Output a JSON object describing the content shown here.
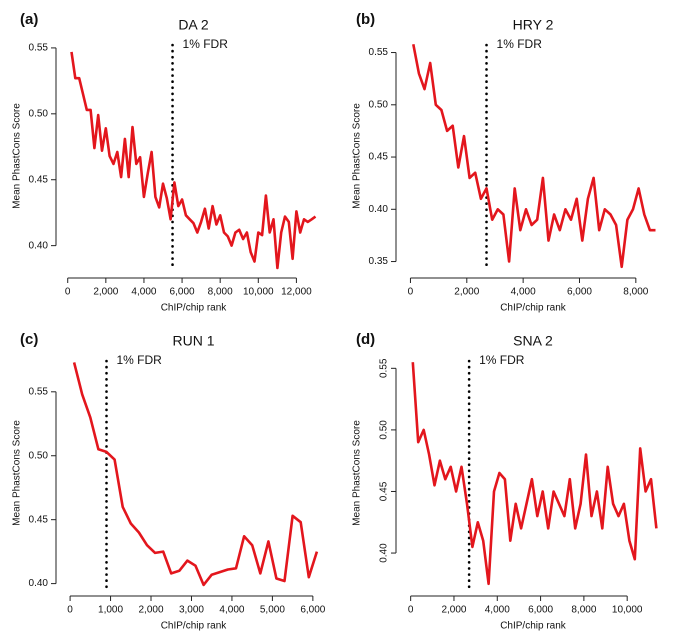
{
  "chart_data": [
    {
      "type": "line",
      "panel_label": "(a)",
      "title": "DA 2",
      "x_label": "ChIP/chip rank",
      "y_label": "Mean PhastCons Score",
      "annotation": "1% FDR",
      "fdr_x": 5500,
      "x": [
        200,
        400,
        600,
        800,
        1000,
        1200,
        1400,
        1600,
        1800,
        2000,
        2200,
        2400,
        2600,
        2800,
        3000,
        3200,
        3400,
        3600,
        3800,
        4000,
        4200,
        4400,
        4600,
        4800,
        5000,
        5200,
        5400,
        5600,
        5800,
        6000,
        6200,
        6400,
        6600,
        6800,
        7000,
        7200,
        7400,
        7600,
        7800,
        8000,
        8200,
        8400,
        8600,
        8800,
        9000,
        9200,
        9400,
        9600,
        9800,
        10000,
        10200,
        10400,
        10600,
        10800,
        11000,
        11200,
        11400,
        11600,
        11800,
        12000,
        12200,
        12400,
        12600,
        12800,
        13000
      ],
      "series": [
        {
          "color": "#e3161d",
          "values": [
            0.547,
            0.527,
            0.527,
            0.515,
            0.503,
            0.503,
            0.474,
            0.499,
            0.472,
            0.489,
            0.468,
            0.462,
            0.471,
            0.452,
            0.481,
            0.452,
            0.49,
            0.462,
            0.467,
            0.437,
            0.455,
            0.471,
            0.437,
            0.429,
            0.447,
            0.436,
            0.42,
            0.448,
            0.43,
            0.435,
            0.423,
            0.42,
            0.417,
            0.41,
            0.418,
            0.428,
            0.413,
            0.43,
            0.416,
            0.423,
            0.41,
            0.407,
            0.4,
            0.41,
            0.412,
            0.405,
            0.41,
            0.395,
            0.388,
            0.41,
            0.408,
            0.438,
            0.41,
            0.42,
            0.383,
            0.41,
            0.422,
            0.418,
            0.39,
            0.426,
            0.41,
            0.42,
            0.418,
            0.42,
            0.422
          ]
        }
      ],
      "xlim": [
        -300,
        13500
      ],
      "ylim": [
        0.38,
        0.556
      ],
      "xticks": [
        0,
        {
          "value": 2000,
          "label": "2,000"
        },
        {
          "value": 4000,
          "label": "4,000"
        },
        {
          "value": 6000,
          "label": "6,000"
        },
        {
          "value": 8000,
          "label": "8,000"
        },
        {
          "value": 10000,
          "label": "10,000"
        },
        {
          "value": 12000,
          "label": "12,000"
        }
      ],
      "yticks": [
        {
          "value": 0.4,
          "label": "0.40"
        },
        0.45,
        {
          "value": 0.5,
          "label": "0.50"
        },
        0.55
      ]
    },
    {
      "type": "line",
      "panel_label": "(b)",
      "title": "HRY 2",
      "x_label": "ChIP/chip rank",
      "y_label": "Mean PhastCons Score",
      "annotation": "1% FDR",
      "fdr_x": 2700,
      "x": [
        100,
        300,
        500,
        700,
        900,
        1100,
        1300,
        1500,
        1700,
        1900,
        2100,
        2300,
        2500,
        2700,
        2900,
        3100,
        3300,
        3500,
        3700,
        3900,
        4100,
        4300,
        4500,
        4700,
        4900,
        5100,
        5300,
        5500,
        5700,
        5900,
        6100,
        6300,
        6500,
        6700,
        6900,
        7100,
        7300,
        7500,
        7700,
        7900,
        8100,
        8300,
        8500,
        8700
      ],
      "series": [
        {
          "color": "#e3161d",
          "values": [
            0.558,
            0.53,
            0.515,
            0.54,
            0.5,
            0.495,
            0.475,
            0.48,
            0.44,
            0.47,
            0.43,
            0.435,
            0.41,
            0.42,
            0.39,
            0.4,
            0.395,
            0.35,
            0.42,
            0.38,
            0.4,
            0.385,
            0.39,
            0.43,
            0.37,
            0.395,
            0.38,
            0.4,
            0.39,
            0.41,
            0.37,
            0.41,
            0.43,
            0.38,
            0.4,
            0.395,
            0.385,
            0.345,
            0.39,
            0.4,
            0.42,
            0.395,
            0.38,
            0.38
          ]
        }
      ],
      "xlim": [
        -300,
        9000
      ],
      "ylim": [
        0.34,
        0.562
      ],
      "xticks": [
        0,
        {
          "value": 2000,
          "label": "2,000"
        },
        {
          "value": 4000,
          "label": "4,000"
        },
        {
          "value": 6000,
          "label": "6,000"
        },
        {
          "value": 8000,
          "label": "8,000"
        }
      ],
      "yticks": [
        0.35,
        {
          "value": 0.4,
          "label": "0.40"
        },
        0.45,
        {
          "value": 0.5,
          "label": "0.50"
        },
        0.55
      ]
    },
    {
      "type": "line",
      "panel_label": "(c)",
      "title": "RUN 1",
      "x_label": "ChIP/chip rank",
      "y_label": "Mean PhastCons Score",
      "annotation": "1% FDR",
      "fdr_x": 900,
      "x": [
        100,
        300,
        500,
        700,
        900,
        1100,
        1300,
        1500,
        1700,
        1900,
        2100,
        2300,
        2500,
        2700,
        2900,
        3100,
        3300,
        3500,
        3700,
        3900,
        4100,
        4300,
        4500,
        4700,
        4900,
        5100,
        5300,
        5500,
        5700,
        5900,
        6100
      ],
      "series": [
        {
          "color": "#e3161d",
          "values": [
            0.573,
            0.548,
            0.53,
            0.505,
            0.503,
            0.497,
            0.46,
            0.447,
            0.44,
            0.43,
            0.424,
            0.425,
            0.408,
            0.41,
            0.418,
            0.414,
            0.399,
            0.407,
            0.409,
            0.411,
            0.412,
            0.437,
            0.43,
            0.408,
            0.433,
            0.404,
            0.402,
            0.453,
            0.448,
            0.405,
            0.425
          ]
        }
      ],
      "xlim": [
        -200,
        6300
      ],
      "ylim": [
        0.395,
        0.578
      ],
      "xticks": [
        0,
        {
          "value": 1000,
          "label": "1,000"
        },
        {
          "value": 2000,
          "label": "2,000"
        },
        {
          "value": 3000,
          "label": "3,000"
        },
        {
          "value": 4000,
          "label": "4,000"
        },
        {
          "value": 5000,
          "label": "5,000"
        },
        {
          "value": 6000,
          "label": "6,000"
        }
      ],
      "yticks": [
        {
          "value": 0.4,
          "label": "0.40"
        },
        0.45,
        {
          "value": 0.5,
          "label": "0.50"
        },
        0.55
      ]
    },
    {
      "type": "line",
      "panel_label": "(d)",
      "title": "SNA 2",
      "x_label": "ChIP/chip rank",
      "y_label": "Mean PhastCons Score",
      "annotation": "1% FDR",
      "fdr_x": 2700,
      "rotate_ytick_labels": true,
      "x": [
        100,
        350,
        600,
        850,
        1100,
        1350,
        1600,
        1850,
        2100,
        2350,
        2600,
        2850,
        3100,
        3350,
        3600,
        3850,
        4100,
        4350,
        4600,
        4850,
        5100,
        5350,
        5600,
        5850,
        6100,
        6350,
        6600,
        6850,
        7100,
        7350,
        7600,
        7850,
        8100,
        8350,
        8600,
        8850,
        9100,
        9350,
        9600,
        9850,
        10100,
        10350,
        10600,
        10850,
        11100,
        11350
      ],
      "series": [
        {
          "color": "#e3161d",
          "values": [
            0.555,
            0.49,
            0.5,
            0.48,
            0.455,
            0.475,
            0.46,
            0.47,
            0.45,
            0.47,
            0.44,
            0.405,
            0.425,
            0.41,
            0.375,
            0.45,
            0.465,
            0.46,
            0.41,
            0.44,
            0.42,
            0.44,
            0.46,
            0.43,
            0.45,
            0.42,
            0.45,
            0.44,
            0.43,
            0.46,
            0.42,
            0.44,
            0.48,
            0.43,
            0.45,
            0.42,
            0.47,
            0.44,
            0.43,
            0.44,
            0.41,
            0.395,
            0.485,
            0.45,
            0.46,
            0.42
          ]
        }
      ],
      "xlim": [
        -400,
        11700
      ],
      "ylim": [
        0.37,
        0.56
      ],
      "xticks": [
        0,
        {
          "value": 2000,
          "label": "2,000"
        },
        {
          "value": 4000,
          "label": "4,000"
        },
        {
          "value": 6000,
          "label": "6,000"
        },
        {
          "value": 8000,
          "label": "8,000"
        },
        {
          "value": 10000,
          "label": "10,000"
        }
      ],
      "yticks": [
        {
          "value": 0.4,
          "label": "0.40"
        },
        0.45,
        {
          "value": 0.5,
          "label": "0.50"
        },
        0.55
      ]
    }
  ]
}
